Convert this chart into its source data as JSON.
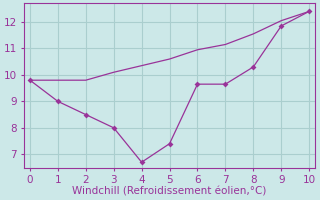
{
  "line1_x": [
    0,
    1,
    2,
    3,
    4,
    5,
    6,
    7,
    8,
    9,
    10
  ],
  "line1_y": [
    9.8,
    9.0,
    8.5,
    8.0,
    6.7,
    7.4,
    9.65,
    9.65,
    10.3,
    11.85,
    12.4
  ],
  "line2_x": [
    0,
    1,
    2,
    3,
    4,
    5,
    6,
    7,
    8,
    9,
    10
  ],
  "line2_y": [
    9.8,
    9.8,
    9.8,
    10.1,
    10.35,
    10.6,
    10.95,
    11.15,
    11.55,
    12.05,
    12.4
  ],
  "color": "#993399",
  "bg_color": "#cce8e8",
  "xlabel": "Windchill (Refroidissement éolien,°C)",
  "xlim": [
    -0.2,
    10.2
  ],
  "ylim": [
    6.5,
    12.7
  ],
  "xticks": [
    0,
    1,
    2,
    3,
    4,
    5,
    6,
    7,
    8,
    9,
    10
  ],
  "yticks": [
    7,
    8,
    9,
    10,
    11,
    12
  ],
  "grid_color": "#aacece",
  "xlabel_color": "#993399",
  "tick_color": "#993399",
  "xlabel_fontsize": 7.5,
  "tick_fontsize": 7.5,
  "marker_size": 3
}
